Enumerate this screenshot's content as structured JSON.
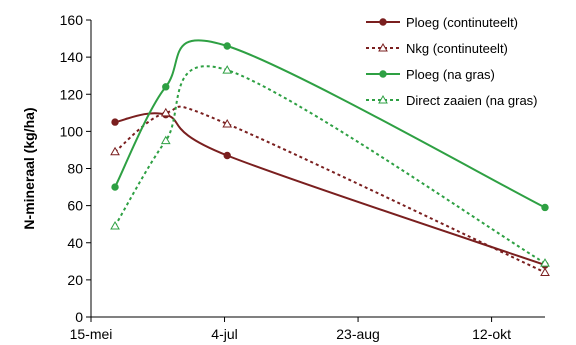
{
  "chart_data": {
    "type": "line",
    "title": "",
    "xlabel": "",
    "ylabel": "N-mineraal (kg/ha)",
    "ylim": [
      0,
      160
    ],
    "y_ticks": [
      0,
      20,
      40,
      60,
      80,
      100,
      120,
      140,
      160
    ],
    "x_tick_labels": [
      "15-mei",
      "4-jul",
      "23-aug",
      "12-okt"
    ],
    "x_date_range": [
      "15-mei",
      "1-nov"
    ],
    "grid": false,
    "legend_position": "top-right",
    "series": [
      {
        "name": "Ploeg (continuteelt)",
        "color": "#7a1f1f",
        "dash": "solid",
        "marker": "filled-circle",
        "x": [
          "24-mei",
          "12-jun",
          "5-jul",
          "1-nov"
        ],
        "y": [
          105,
          109,
          87,
          28
        ]
      },
      {
        "name": "Nkg (continuteelt)",
        "color": "#7a1f1f",
        "dash": "dashed",
        "marker": "open-triangle",
        "x": [
          "24-mei",
          "12-jun",
          "5-jul",
          "1-nov"
        ],
        "y": [
          89,
          110,
          104,
          24
        ]
      },
      {
        "name": "Ploeg (na gras)",
        "color": "#2ea043",
        "dash": "solid",
        "marker": "filled-circle",
        "x": [
          "24-mei",
          "12-jun",
          "5-jul",
          "1-nov"
        ],
        "y": [
          70,
          124,
          146,
          59
        ]
      },
      {
        "name": "Direct zaaien (na gras)",
        "color": "#2ea043",
        "dash": "dashed",
        "marker": "open-triangle",
        "x": [
          "24-mei",
          "12-jun",
          "5-jul",
          "1-nov"
        ],
        "y": [
          49,
          95,
          133,
          29
        ]
      }
    ]
  }
}
